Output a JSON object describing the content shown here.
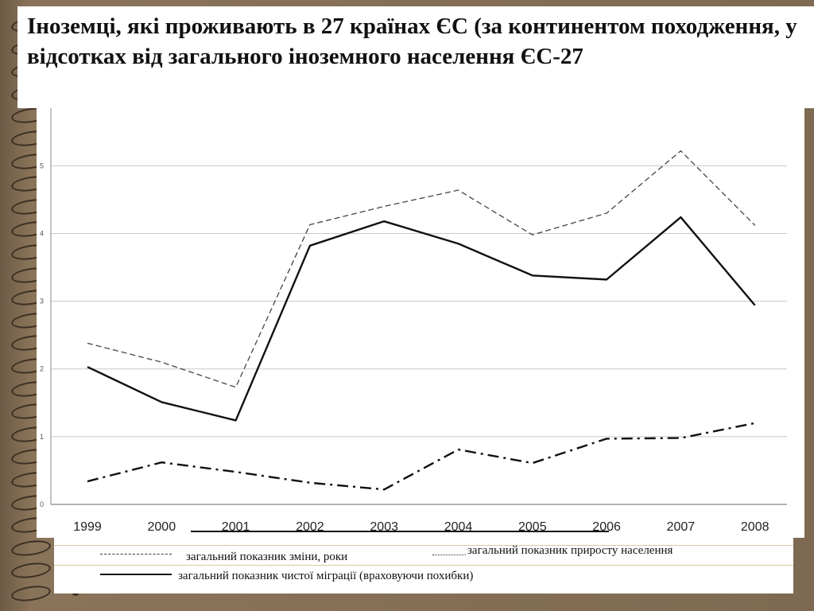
{
  "slide": {
    "title": "Іноземці, які проживають в 27 країнах ЄС (за континентом походження, у відсотках від загального іноземного населення ЄС-27"
  },
  "colors": {
    "background": "#7a6650",
    "panel": "#ffffff",
    "grid": "#c8c8c8",
    "series": "#111111",
    "dashed_series": "#444444"
  },
  "chart_data": {
    "type": "line",
    "title": "",
    "xlabel": "",
    "ylabel": "",
    "x": [
      "1999",
      "2000",
      "2001",
      "2002",
      "2003",
      "2004",
      "2005",
      "2006",
      "2007",
      "2008"
    ],
    "ylim": [
      0,
      6
    ],
    "yticks": [
      "0",
      "1",
      "2",
      "3",
      "4",
      "5"
    ],
    "grid": true,
    "series": [
      {
        "name": "загальний показник зміни, роки",
        "style": "dashed",
        "values": [
          2.38,
          2.1,
          1.73,
          4.13,
          4.4,
          4.64,
          3.98,
          4.3,
          5.22,
          4.12
        ]
      },
      {
        "name": "загальний показник приросту населення",
        "style": "dashdot",
        "values": [
          0.34,
          0.62,
          0.48,
          0.32,
          0.22,
          0.81,
          0.61,
          0.97,
          0.98,
          1.2
        ]
      },
      {
        "name": "загальний показник чистої міграції (враховуючи похибки)",
        "style": "solid",
        "values": [
          2.03,
          1.51,
          1.24,
          3.82,
          4.18,
          3.85,
          3.38,
          3.32,
          4.24,
          2.94
        ]
      }
    ]
  },
  "legend": {
    "item1_label": "загальний показник зміни, роки",
    "item2_label": "загальний показник приросту населення",
    "item3_label": "загальний показник чистої міграції (враховуючи похибки)"
  }
}
